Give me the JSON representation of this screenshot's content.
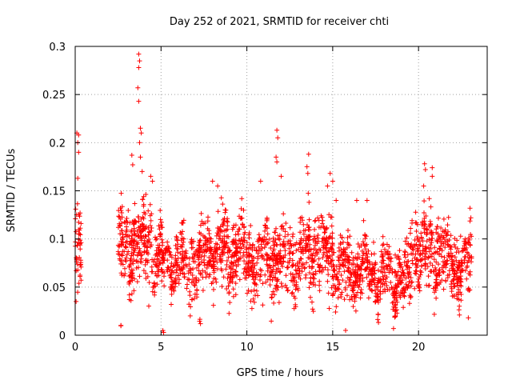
{
  "chart_data": {
    "type": "scatter",
    "title": "Day 252 of 2021, SRMTID for receiver chti",
    "xlabel": "GPS time / hours",
    "ylabel": "SRMTID / TECUs",
    "xlim": [
      0,
      24
    ],
    "ylim": [
      0,
      0.3
    ],
    "xticks": [
      "0",
      "5",
      "10",
      "15",
      "20"
    ],
    "yticks": [
      "0",
      "0.05",
      "0.1",
      "0.15",
      "0.2",
      "0.25",
      "0.3"
    ],
    "grid": true,
    "marker_color": "#ff0000",
    "seed": 252,
    "clusters": [
      {
        "x0": 0.0,
        "x1": 0.35,
        "n": 45,
        "base": 0.085,
        "spread": 0.03
      },
      {
        "x0": 2.6,
        "x1": 2.7,
        "n": 2,
        "base": 0.001,
        "spread": 0.001
      },
      {
        "x0": 2.5,
        "x1": 4.5,
        "n": 250,
        "base": 0.095,
        "spread": 0.028
      },
      {
        "x0": 4.5,
        "x1": 7.5,
        "n": 300,
        "base": 0.075,
        "spread": 0.022
      },
      {
        "x0": 5.1,
        "x1": 5.2,
        "n": 2,
        "base": 0.001,
        "spread": 0.001
      },
      {
        "x0": 7.2,
        "x1": 7.3,
        "n": 2,
        "base": 0.001,
        "spread": 0.001
      },
      {
        "x0": 7.5,
        "x1": 10.0,
        "n": 300,
        "base": 0.085,
        "spread": 0.024
      },
      {
        "x0": 10.0,
        "x1": 13.0,
        "n": 320,
        "base": 0.078,
        "spread": 0.024
      },
      {
        "x0": 13.0,
        "x1": 15.0,
        "n": 230,
        "base": 0.085,
        "spread": 0.025
      },
      {
        "x0": 15.0,
        "x1": 17.5,
        "n": 280,
        "base": 0.068,
        "spread": 0.02
      },
      {
        "x0": 17.5,
        "x1": 19.5,
        "n": 220,
        "base": 0.058,
        "spread": 0.02
      },
      {
        "x0": 19.5,
        "x1": 21.5,
        "n": 230,
        "base": 0.085,
        "spread": 0.028
      },
      {
        "x0": 21.5,
        "x1": 23.1,
        "n": 180,
        "base": 0.072,
        "spread": 0.02
      }
    ],
    "highlights": [
      {
        "x": 0.1,
        "y": 0.21
      },
      {
        "x": 0.2,
        "y": 0.208
      },
      {
        "x": 0.15,
        "y": 0.2
      },
      {
        "x": 0.2,
        "y": 0.19
      },
      {
        "x": 0.15,
        "y": 0.163
      },
      {
        "x": 0.05,
        "y": 0.035
      },
      {
        "x": 3.7,
        "y": 0.292
      },
      {
        "x": 3.75,
        "y": 0.285
      },
      {
        "x": 3.7,
        "y": 0.278
      },
      {
        "x": 3.65,
        "y": 0.257
      },
      {
        "x": 3.7,
        "y": 0.243
      },
      {
        "x": 3.8,
        "y": 0.215
      },
      {
        "x": 3.85,
        "y": 0.21
      },
      {
        "x": 3.75,
        "y": 0.2
      },
      {
        "x": 3.3,
        "y": 0.187
      },
      {
        "x": 3.8,
        "y": 0.185
      },
      {
        "x": 3.35,
        "y": 0.177
      },
      {
        "x": 3.9,
        "y": 0.17
      },
      {
        "x": 4.4,
        "y": 0.165
      },
      {
        "x": 4.5,
        "y": 0.16
      },
      {
        "x": 11.75,
        "y": 0.213
      },
      {
        "x": 11.8,
        "y": 0.205
      },
      {
        "x": 11.7,
        "y": 0.185
      },
      {
        "x": 11.75,
        "y": 0.18
      },
      {
        "x": 12.0,
        "y": 0.165
      },
      {
        "x": 13.6,
        "y": 0.188
      },
      {
        "x": 13.5,
        "y": 0.175
      },
      {
        "x": 13.55,
        "y": 0.168
      },
      {
        "x": 14.85,
        "y": 0.168
      },
      {
        "x": 15.0,
        "y": 0.16
      },
      {
        "x": 14.7,
        "y": 0.155
      },
      {
        "x": 20.35,
        "y": 0.178
      },
      {
        "x": 20.4,
        "y": 0.172
      },
      {
        "x": 20.8,
        "y": 0.174
      },
      {
        "x": 20.8,
        "y": 0.165
      },
      {
        "x": 20.3,
        "y": 0.155
      },
      {
        "x": 6.7,
        "y": 0.02
      },
      {
        "x": 7.3,
        "y": 0.012
      },
      {
        "x": 15.75,
        "y": 0.005
      },
      {
        "x": 22.9,
        "y": 0.018
      },
      {
        "x": 23.0,
        "y": 0.132
      },
      {
        "x": 23.05,
        "y": 0.122
      },
      {
        "x": 15.2,
        "y": 0.14
      },
      {
        "x": 16.4,
        "y": 0.14
      },
      {
        "x": 17.0,
        "y": 0.14
      },
      {
        "x": 8.0,
        "y": 0.16
      },
      {
        "x": 8.3,
        "y": 0.155
      },
      {
        "x": 10.8,
        "y": 0.16
      }
    ]
  }
}
